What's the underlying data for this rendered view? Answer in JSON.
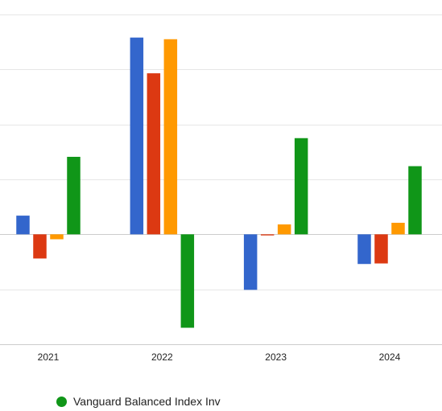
{
  "chart_data": {
    "type": "bar",
    "categories": [
      "2021",
      "2022",
      "2023",
      "2024"
    ],
    "series": [
      {
        "color": "#3366cc",
        "values": [
          3.4,
          35.8,
          -10.1,
          -5.4
        ]
      },
      {
        "color": "#dc3912",
        "values": [
          -4.4,
          29.3,
          -0.2,
          -5.3
        ]
      },
      {
        "color": "#ff9900",
        "values": [
          -0.9,
          35.5,
          1.8,
          2.1
        ]
      },
      {
        "name": "Vanguard Balanced Index Inv",
        "color": "#109618",
        "values": [
          14.1,
          -17.0,
          17.5,
          12.4
        ]
      }
    ],
    "ylim": [
      -20,
      40
    ],
    "gridlines": [
      -10,
      0,
      10,
      20,
      30,
      40
    ],
    "grid": true,
    "legend_position": "bottom-left",
    "title": "",
    "xlabel": "",
    "ylabel": ""
  }
}
